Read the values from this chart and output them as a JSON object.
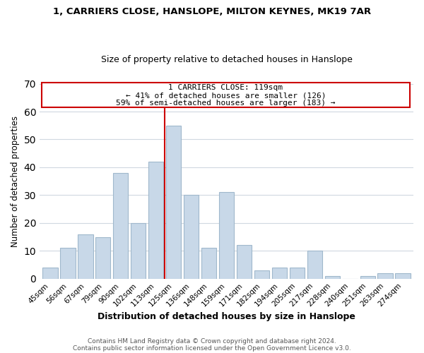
{
  "title1": "1, CARRIERS CLOSE, HANSLOPE, MILTON KEYNES, MK19 7AR",
  "title2": "Size of property relative to detached houses in Hanslope",
  "xlabel": "Distribution of detached houses by size in Hanslope",
  "ylabel": "Number of detached properties",
  "bar_labels": [
    "45sqm",
    "56sqm",
    "67sqm",
    "79sqm",
    "90sqm",
    "102sqm",
    "113sqm",
    "125sqm",
    "136sqm",
    "148sqm",
    "159sqm",
    "171sqm",
    "182sqm",
    "194sqm",
    "205sqm",
    "217sqm",
    "228sqm",
    "240sqm",
    "251sqm",
    "263sqm",
    "274sqm"
  ],
  "bar_values": [
    4,
    11,
    16,
    15,
    38,
    20,
    42,
    55,
    30,
    11,
    31,
    12,
    3,
    4,
    4,
    10,
    1,
    0,
    1,
    2,
    2
  ],
  "bar_color": "#c8d8e8",
  "bar_edge_color": "#a0b8cc",
  "vline_color": "#cc0000",
  "annotation_title": "1 CARRIERS CLOSE: 119sqm",
  "annotation_line1": "← 41% of detached houses are smaller (126)",
  "annotation_line2": "59% of semi-detached houses are larger (183) →",
  "annotation_box_color": "#ffffff",
  "annotation_box_edge": "#cc0000",
  "ylim": [
    0,
    70
  ],
  "yticks": [
    0,
    10,
    20,
    30,
    40,
    50,
    60,
    70
  ],
  "footer1": "Contains HM Land Registry data © Crown copyright and database right 2024.",
  "footer2": "Contains public sector information licensed under the Open Government Licence v3.0."
}
